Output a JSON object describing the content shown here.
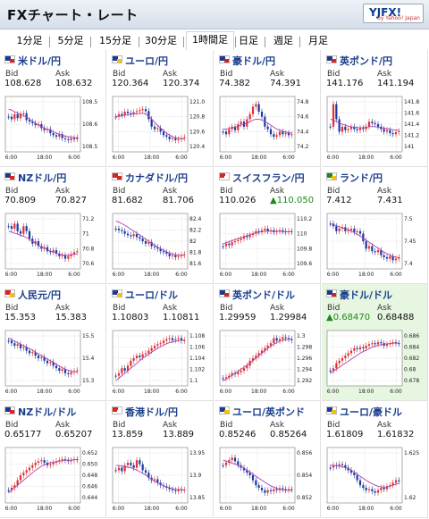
{
  "app": {
    "title": "FXチャート・レート",
    "logo": "YJFX!",
    "logo_sub": "by Yahoo! Japan"
  },
  "tabs": [
    {
      "label": "1分足",
      "active": false
    },
    {
      "label": "5分足",
      "active": false
    },
    {
      "label": "15分足",
      "active": false
    },
    {
      "label": "30分足",
      "active": false
    },
    {
      "label": "1時間足",
      "active": true
    },
    {
      "label": "日足",
      "active": false
    },
    {
      "label": "週足",
      "active": false
    },
    {
      "label": "月足",
      "active": false
    }
  ],
  "labels": {
    "bid": "Bid",
    "ask": "Ask"
  },
  "colors": {
    "up": "#e03030",
    "down": "#1b3aa0",
    "ma": "#b040b0",
    "accent_text": "#1a3e8c",
    "highlight_bg": "#e6f6e0"
  },
  "pairs": [
    {
      "name": "米ドル/円",
      "flag": "us-flag",
      "bid": "108.628",
      "ask": "108.632",
      "chart_data": {
        "type": "candlestick",
        "yticks": [
          "108.5",
          "108.6",
          "108.5"
        ],
        "xticks": [
          "6:00",
          "18:00",
          "6:00"
        ],
        "path": [
          0.35,
          0.4,
          0.3,
          0.38,
          0.3,
          0.28,
          0.42,
          0.45,
          0.48,
          0.52,
          0.5,
          0.58,
          0.62,
          0.6,
          0.68,
          0.72,
          0.75,
          0.7,
          0.78,
          0.8,
          0.82,
          0.78,
          0.8,
          0.76
        ],
        "ma": [
          0.2,
          0.22,
          0.25,
          0.28,
          0.3,
          0.33,
          0.36,
          0.4,
          0.44,
          0.48,
          0.52,
          0.55,
          0.58,
          0.6,
          0.62,
          0.65,
          0.68,
          0.7,
          0.72,
          0.74,
          0.75,
          0.76,
          0.77,
          0.78
        ]
      }
    },
    {
      "name": "ユーロ/円",
      "flag": "eu-flag",
      "bid": "120.364",
      "ask": "120.374",
      "chart_data": {
        "type": "candlestick",
        "yticks": [
          "121.0",
          "120.8",
          "120.6",
          "120.4"
        ],
        "xticks": [
          "6:00",
          "18:00",
          "6:00"
        ],
        "path": [
          0.35,
          0.3,
          0.32,
          0.25,
          0.28,
          0.3,
          0.26,
          0.24,
          0.22,
          0.2,
          0.24,
          0.4,
          0.55,
          0.6,
          0.58,
          0.65,
          0.72,
          0.75,
          0.8,
          0.78,
          0.82,
          0.8,
          0.78,
          0.76
        ],
        "ma": [
          0.35,
          0.34,
          0.33,
          0.32,
          0.31,
          0.3,
          0.3,
          0.29,
          0.29,
          0.28,
          0.3,
          0.34,
          0.4,
          0.46,
          0.52,
          0.58,
          0.63,
          0.68,
          0.72,
          0.75,
          0.77,
          0.78,
          0.79,
          0.8
        ]
      }
    },
    {
      "name": "豪ドル/円",
      "flag": "au-flag",
      "bid": "74.382",
      "ask": "74.391",
      "chart_data": {
        "type": "candlestick",
        "yticks": [
          "74.8",
          "74.6",
          "74.4",
          "74.2"
        ],
        "xticks": [
          "6:00",
          "18:00",
          "6:00"
        ],
        "path": [
          0.65,
          0.7,
          0.6,
          0.55,
          0.62,
          0.5,
          0.45,
          0.55,
          0.4,
          0.3,
          0.15,
          0.1,
          0.25,
          0.35,
          0.55,
          0.6,
          0.7,
          0.75,
          0.72,
          0.65,
          0.7,
          0.68,
          0.72,
          0.7
        ],
        "ma": [
          0.6,
          0.6,
          0.58,
          0.57,
          0.56,
          0.54,
          0.52,
          0.5,
          0.48,
          0.45,
          0.42,
          0.4,
          0.4,
          0.42,
          0.45,
          0.48,
          0.52,
          0.56,
          0.6,
          0.62,
          0.64,
          0.66,
          0.67,
          0.68
        ]
      }
    },
    {
      "name": "英ポンド/円",
      "flag": "gb-flag",
      "bid": "141.176",
      "ask": "141.194",
      "chart_data": {
        "type": "candlestick",
        "yticks": [
          "141.8",
          "141.6",
          "141.4",
          "141.2",
          "141"
        ],
        "xticks": [
          "6:00",
          "18:00",
          "6:00"
        ],
        "path": [
          0.55,
          0.1,
          0.4,
          0.65,
          0.55,
          0.62,
          0.6,
          0.55,
          0.6,
          0.62,
          0.58,
          0.6,
          0.55,
          0.45,
          0.48,
          0.5,
          0.55,
          0.6,
          0.65,
          0.62,
          0.68,
          0.7,
          0.66,
          0.64
        ],
        "ma": [
          0.4,
          0.42,
          0.45,
          0.48,
          0.5,
          0.52,
          0.54,
          0.55,
          0.56,
          0.57,
          0.57,
          0.57,
          0.56,
          0.55,
          0.55,
          0.55,
          0.56,
          0.57,
          0.58,
          0.59,
          0.6,
          0.61,
          0.62,
          0.62
        ]
      }
    },
    {
      "name": "NZドル/円",
      "flag": "nz-flag",
      "bid": "70.809",
      "ask": "70.827",
      "chart_data": {
        "type": "candlestick",
        "yticks": [
          "71.2",
          "71",
          "70.8",
          "70.6"
        ],
        "xticks": [
          "6:00",
          "18:00",
          "6:00"
        ],
        "path": [
          0.2,
          0.25,
          0.15,
          0.3,
          0.35,
          0.2,
          0.3,
          0.45,
          0.55,
          0.5,
          0.6,
          0.65,
          0.62,
          0.7,
          0.72,
          0.68,
          0.75,
          0.8,
          0.78,
          0.85,
          0.8,
          0.76,
          0.72,
          0.7
        ],
        "ma": [
          0.3,
          0.32,
          0.34,
          0.36,
          0.38,
          0.4,
          0.43,
          0.46,
          0.5,
          0.54,
          0.58,
          0.61,
          0.64,
          0.67,
          0.7,
          0.72,
          0.74,
          0.76,
          0.77,
          0.78,
          0.78,
          0.77,
          0.76,
          0.75
        ]
      }
    },
    {
      "name": "カナダドル/円",
      "flag": "ca-flag",
      "bid": "81.682",
      "ask": "81.706",
      "chart_data": {
        "type": "candlestick",
        "yticks": [
          "82.4",
          "82.2",
          "82",
          "81.8",
          "81.6"
        ],
        "xticks": [
          "6:00",
          "18:00",
          "6:00"
        ],
        "path": [
          0.25,
          0.28,
          0.3,
          0.35,
          0.38,
          0.4,
          0.36,
          0.42,
          0.45,
          0.5,
          0.55,
          0.52,
          0.6,
          0.62,
          0.65,
          0.7,
          0.72,
          0.75,
          0.8,
          0.78,
          0.82,
          0.8,
          0.78,
          0.76
        ],
        "ma": [
          0.1,
          0.12,
          0.15,
          0.18,
          0.22,
          0.26,
          0.3,
          0.34,
          0.38,
          0.42,
          0.46,
          0.5,
          0.54,
          0.58,
          0.62,
          0.65,
          0.68,
          0.71,
          0.74,
          0.76,
          0.77,
          0.78,
          0.78,
          0.78
        ]
      }
    },
    {
      "name": "スイスフラン/円",
      "flag": "ch-flag",
      "bid": "110.026",
      "ask": "110.050",
      "ask_up": true,
      "chart_data": {
        "type": "candlestick",
        "yticks": [
          "110.2",
          "110",
          "109.8",
          "109.6"
        ],
        "xticks": [
          "6:00",
          "18:00",
          "6:00"
        ],
        "path": [
          0.6,
          0.55,
          0.58,
          0.52,
          0.5,
          0.48,
          0.45,
          0.4,
          0.42,
          0.38,
          0.35,
          0.3,
          0.32,
          0.28,
          0.25,
          0.3,
          0.28,
          0.32,
          0.3,
          0.28,
          0.3,
          0.32,
          0.3,
          0.31
        ],
        "ma": [
          0.55,
          0.53,
          0.51,
          0.49,
          0.47,
          0.45,
          0.43,
          0.41,
          0.39,
          0.37,
          0.35,
          0.33,
          0.32,
          0.31,
          0.3,
          0.3,
          0.3,
          0.3,
          0.3,
          0.3,
          0.31,
          0.31,
          0.31,
          0.31
        ]
      }
    },
    {
      "name": "ランド/円",
      "flag": "za-flag",
      "bid": "7.412",
      "ask": "7.431",
      "chart_data": {
        "type": "candlestick",
        "yticks": [
          "7.5",
          "7.45",
          "7.4"
        ],
        "xticks": [
          "6:00",
          "18:00",
          "6:00"
        ],
        "path": [
          0.15,
          0.2,
          0.3,
          0.25,
          0.22,
          0.3,
          0.28,
          0.25,
          0.32,
          0.3,
          0.35,
          0.5,
          0.65,
          0.6,
          0.7,
          0.72,
          0.68,
          0.78,
          0.82,
          0.85,
          0.8,
          0.88,
          0.85,
          0.82
        ],
        "ma": [
          0.15,
          0.17,
          0.19,
          0.21,
          0.23,
          0.25,
          0.27,
          0.3,
          0.33,
          0.36,
          0.4,
          0.44,
          0.48,
          0.52,
          0.56,
          0.6,
          0.64,
          0.68,
          0.72,
          0.75,
          0.78,
          0.8,
          0.82,
          0.83
        ]
      }
    },
    {
      "name": "人民元/円",
      "flag": "cn-flag",
      "bid": "15.353",
      "ask": "15.383",
      "chart_data": {
        "type": "candlestick",
        "yticks": [
          "15.5",
          "15.4",
          "15.3"
        ],
        "xticks": [
          "6:00",
          "18:00",
          "6:00"
        ],
        "path": [
          0.15,
          0.2,
          0.25,
          0.22,
          0.3,
          0.28,
          0.35,
          0.4,
          0.38,
          0.45,
          0.5,
          0.48,
          0.55,
          0.6,
          0.58,
          0.65,
          0.7,
          0.75,
          0.72,
          0.8,
          0.82,
          0.78,
          0.76,
          0.74
        ],
        "ma": [
          0.1,
          0.13,
          0.16,
          0.19,
          0.22,
          0.25,
          0.28,
          0.31,
          0.34,
          0.38,
          0.42,
          0.45,
          0.48,
          0.52,
          0.55,
          0.58,
          0.62,
          0.66,
          0.69,
          0.72,
          0.74,
          0.76,
          0.77,
          0.78
        ]
      }
    },
    {
      "name": "ユーロ/ドル",
      "flag": "eu-flag",
      "bid": "1.10803",
      "ask": "1.10811",
      "chart_data": {
        "type": "candlestick",
        "yticks": [
          "1.108",
          "1.106",
          "1.104",
          "1.102",
          "1.1"
        ],
        "xticks": [
          "6:00",
          "18:00",
          "6:00"
        ],
        "path": [
          0.85,
          0.8,
          0.7,
          0.75,
          0.65,
          0.55,
          0.5,
          0.45,
          0.48,
          0.42,
          0.4,
          0.35,
          0.3,
          0.25,
          0.22,
          0.2,
          0.15,
          0.12,
          0.1,
          0.14,
          0.12,
          0.1,
          0.15,
          0.14
        ],
        "ma": [
          0.95,
          0.9,
          0.85,
          0.8,
          0.75,
          0.7,
          0.65,
          0.6,
          0.55,
          0.5,
          0.46,
          0.42,
          0.38,
          0.34,
          0.3,
          0.27,
          0.24,
          0.21,
          0.19,
          0.17,
          0.16,
          0.15,
          0.14,
          0.14
        ]
      }
    },
    {
      "name": "英ポンド/ドル",
      "flag": "gb-flag",
      "bid": "1.29959",
      "ask": "1.29984",
      "chart_data": {
        "type": "candlestick",
        "yticks": [
          "1.3",
          "1.298",
          "1.296",
          "1.294",
          "1.292"
        ],
        "xticks": [
          "6:00",
          "18:00",
          "6:00"
        ],
        "path": [
          0.9,
          0.88,
          0.85,
          0.8,
          0.82,
          0.78,
          0.75,
          0.7,
          0.65,
          0.55,
          0.5,
          0.45,
          0.4,
          0.35,
          0.3,
          0.25,
          0.2,
          0.1,
          0.15,
          0.12,
          0.08,
          0.1,
          0.12,
          0.14
        ],
        "ma": [
          0.95,
          0.92,
          0.88,
          0.84,
          0.8,
          0.76,
          0.72,
          0.68,
          0.64,
          0.6,
          0.55,
          0.5,
          0.45,
          0.4,
          0.35,
          0.3,
          0.26,
          0.22,
          0.19,
          0.16,
          0.14,
          0.13,
          0.12,
          0.12
        ]
      }
    },
    {
      "name": "豪ドル/ドル",
      "flag": "au-flag",
      "bid": "0.68470",
      "ask": "0.68488",
      "bid_up": true,
      "highlight": true,
      "chart_data": {
        "type": "candlestick",
        "yticks": [
          "0.686",
          "0.684",
          "0.682",
          "0.68",
          "0.678"
        ],
        "xticks": [
          "6:00",
          "18:00",
          "6:00"
        ],
        "path": [
          0.75,
          0.7,
          0.6,
          0.55,
          0.5,
          0.45,
          0.4,
          0.35,
          0.3,
          0.32,
          0.28,
          0.3,
          0.25,
          0.22,
          0.2,
          0.22,
          0.18,
          0.2,
          0.25,
          0.22,
          0.2,
          0.18,
          0.2,
          0.21
        ],
        "ma": [
          0.8,
          0.76,
          0.72,
          0.68,
          0.64,
          0.6,
          0.56,
          0.52,
          0.48,
          0.44,
          0.4,
          0.37,
          0.34,
          0.31,
          0.28,
          0.26,
          0.24,
          0.23,
          0.22,
          0.21,
          0.21,
          0.2,
          0.2,
          0.2
        ]
      }
    },
    {
      "name": "NZドル/ドル",
      "flag": "nz-flag",
      "bid": "0.65177",
      "ask": "0.65207",
      "chart_data": {
        "type": "candlestick",
        "yticks": [
          "0.652",
          "0.650",
          "0.648",
          "0.646",
          "0.644"
        ],
        "xticks": [
          "6:00",
          "18:00",
          "6:00"
        ],
        "path": [
          0.8,
          0.75,
          0.7,
          0.6,
          0.5,
          0.45,
          0.4,
          0.35,
          0.3,
          0.25,
          0.22,
          0.2,
          0.25,
          0.3,
          0.28,
          0.25,
          0.22,
          0.2,
          0.18,
          0.2,
          0.22,
          0.2,
          0.18,
          0.19
        ],
        "ma": [
          0.85,
          0.8,
          0.75,
          0.7,
          0.65,
          0.6,
          0.55,
          0.5,
          0.45,
          0.4,
          0.36,
          0.32,
          0.29,
          0.27,
          0.25,
          0.24,
          0.23,
          0.22,
          0.21,
          0.2,
          0.2,
          0.2,
          0.19,
          0.19
        ]
      }
    },
    {
      "name": "香港ドル/円",
      "flag": "hk-flag",
      "bid": "13.859",
      "ask": "13.889",
      "chart_data": {
        "type": "candlestick",
        "yticks": [
          "13.95",
          "13.9",
          "13.85"
        ],
        "xticks": [
          "6:00",
          "18:00",
          "6:00"
        ],
        "path": [
          0.4,
          0.35,
          0.42,
          0.3,
          0.25,
          0.3,
          0.35,
          0.2,
          0.28,
          0.4,
          0.45,
          0.55,
          0.6,
          0.58,
          0.65,
          0.7,
          0.72,
          0.75,
          0.78,
          0.8,
          0.82,
          0.78,
          0.8,
          0.79
        ],
        "ma": [
          0.3,
          0.31,
          0.32,
          0.33,
          0.34,
          0.35,
          0.37,
          0.4,
          0.43,
          0.46,
          0.5,
          0.54,
          0.58,
          0.62,
          0.65,
          0.68,
          0.71,
          0.73,
          0.75,
          0.77,
          0.78,
          0.79,
          0.79,
          0.8
        ]
      }
    },
    {
      "name": "ユーロ/英ポンド",
      "flag": "eu-flag",
      "bid": "0.85246",
      "ask": "0.85264",
      "chart_data": {
        "type": "candlestick",
        "yticks": [
          "0.856",
          "0.854",
          "0.852"
        ],
        "xticks": [
          "6:00",
          "18:00",
          "6:00"
        ],
        "path": [
          0.3,
          0.25,
          0.2,
          0.15,
          0.22,
          0.3,
          0.35,
          0.4,
          0.45,
          0.5,
          0.6,
          0.7,
          0.75,
          0.8,
          0.85,
          0.8,
          0.82,
          0.78,
          0.8,
          0.76,
          0.78,
          0.8,
          0.78,
          0.79
        ],
        "ma": [
          0.2,
          0.22,
          0.24,
          0.26,
          0.28,
          0.3,
          0.33,
          0.36,
          0.4,
          0.44,
          0.48,
          0.52,
          0.56,
          0.6,
          0.64,
          0.68,
          0.71,
          0.74,
          0.76,
          0.78,
          0.79,
          0.8,
          0.8,
          0.8
        ]
      }
    },
    {
      "name": "ユーロ/豪ドル",
      "flag": "eu-flag",
      "bid": "1.61809",
      "ask": "1.61832",
      "chart_data": {
        "type": "candlestick",
        "yticks": [
          "1.625",
          "1.62"
        ],
        "xticks": [
          "6:00",
          "18:00",
          "6:00"
        ],
        "path": [
          0.35,
          0.3,
          0.32,
          0.28,
          0.3,
          0.35,
          0.4,
          0.45,
          0.5,
          0.6,
          0.7,
          0.75,
          0.8,
          0.78,
          0.82,
          0.85,
          0.8,
          0.75,
          0.78,
          0.72,
          0.7,
          0.65,
          0.6,
          0.62
        ],
        "ma": [
          0.3,
          0.3,
          0.31,
          0.32,
          0.33,
          0.35,
          0.37,
          0.4,
          0.44,
          0.48,
          0.52,
          0.56,
          0.6,
          0.64,
          0.67,
          0.7,
          0.72,
          0.73,
          0.74,
          0.73,
          0.72,
          0.7,
          0.68,
          0.66
        ]
      }
    }
  ]
}
